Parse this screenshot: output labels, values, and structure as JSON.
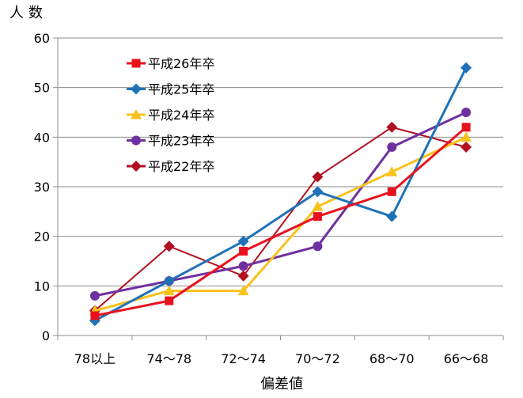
{
  "chart_data": {
    "type": "line",
    "title": "",
    "xlabel": "偏差値",
    "ylabel": "人数",
    "ylim": [
      0,
      60
    ],
    "yticks": [
      0,
      10,
      20,
      30,
      40,
      50,
      60
    ],
    "grid": true,
    "legend_position": "top-left",
    "categories": [
      "78以上",
      "74～78",
      "72～74",
      "70～72",
      "68～70",
      "66～68"
    ],
    "series": [
      {
        "name": "平成26年卒",
        "color": "#e8121e",
        "marker": "square",
        "values": [
          4,
          7,
          17,
          24,
          29,
          42
        ]
      },
      {
        "name": "平成25年卒",
        "color": "#1f72b8",
        "marker": "diamond",
        "values": [
          3,
          11,
          19,
          29,
          24,
          54
        ]
      },
      {
        "name": "平成24年卒",
        "color": "#f8c21c",
        "marker": "triangle",
        "values": [
          5,
          9,
          9,
          26,
          33,
          40
        ]
      },
      {
        "name": "平成23年卒",
        "color": "#7030a0",
        "marker": "circle",
        "values": [
          8,
          11,
          14,
          18,
          38,
          45
        ]
      },
      {
        "name": "平成22年卒",
        "color": "#b01020",
        "marker": "diamond",
        "values": [
          5,
          18,
          12,
          32,
          42,
          38
        ]
      }
    ]
  }
}
